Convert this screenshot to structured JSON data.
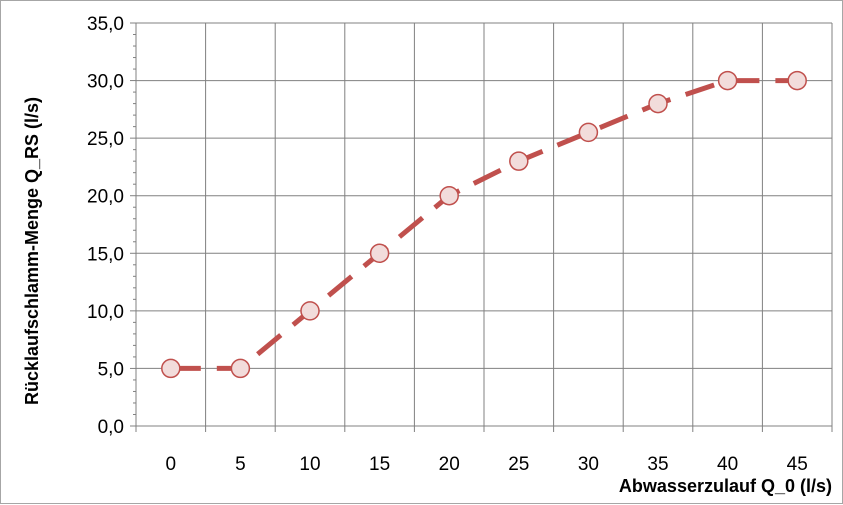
{
  "chart_data": {
    "type": "line",
    "title": "",
    "xlabel": "Abwasserzulauf Q_0 (l/s)",
    "ylabel": "Rücklaufschlamm-Menge Q_RS (l/s)",
    "x": [
      0,
      5,
      10,
      15,
      20,
      25,
      30,
      35,
      40,
      45
    ],
    "x_tick_labels": [
      "0",
      "5",
      "10",
      "15",
      "20",
      "25",
      "30",
      "35",
      "40",
      "45"
    ],
    "y_tick_values": [
      0,
      5,
      10,
      15,
      20,
      25,
      30,
      35
    ],
    "y_tick_labels": [
      "0,0",
      "5,0",
      "10,0",
      "15,0",
      "20,0",
      "25,0",
      "30,0",
      "35,0"
    ],
    "ylim": [
      0,
      35
    ],
    "grid": true,
    "series": [
      {
        "values": [
          5,
          5,
          10,
          15,
          20,
          23,
          25.5,
          28,
          30,
          30
        ],
        "line_color": "#c0504d",
        "line_style": "dashed",
        "marker": "circle",
        "marker_fill": "#f2dcdb",
        "marker_edge": "#c0504d"
      }
    ]
  }
}
